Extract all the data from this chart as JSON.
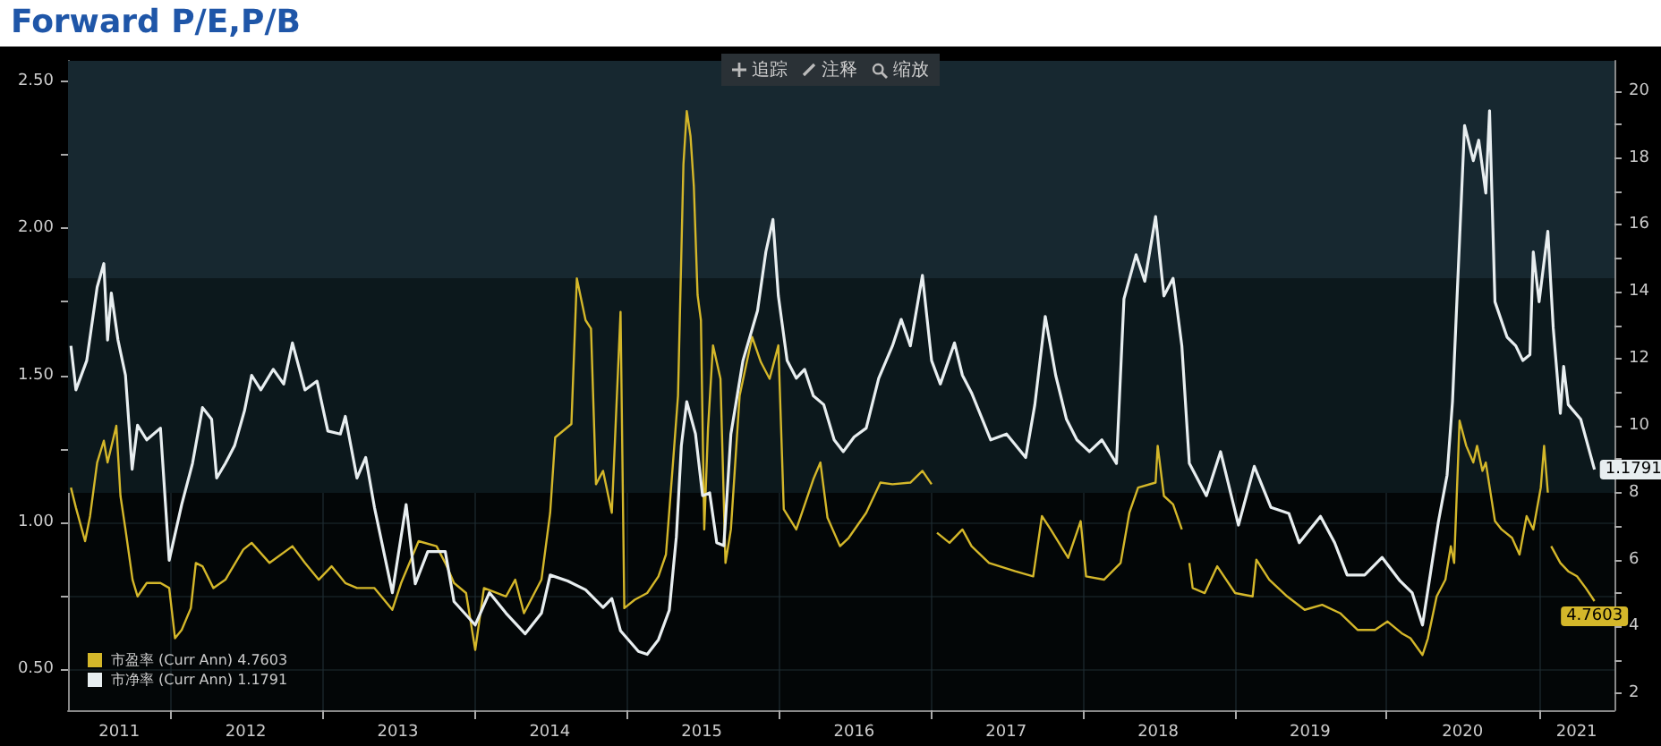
{
  "chart_data": {
    "type": "line",
    "title": "Forward P/E,P/B",
    "annotations": [
      "追踪",
      "注释",
      "缩放"
    ],
    "xlim": [
      "2011-05-01",
      "2021-07-01"
    ],
    "xticks": [
      {
        "value": "2011-09-01",
        "label": "2011"
      },
      {
        "value": "2012-01-01",
        "label": null
      },
      {
        "value": "2012-07-01",
        "label": "2012"
      },
      {
        "value": "2013-01-01",
        "label": null
      },
      {
        "value": "2013-07-01",
        "label": "2013"
      },
      {
        "value": "2014-01-01",
        "label": null
      },
      {
        "value": "2014-07-01",
        "label": "2014"
      },
      {
        "value": "2015-01-01",
        "label": null
      },
      {
        "value": "2015-07-01",
        "label": "2015"
      },
      {
        "value": "2016-01-01",
        "label": null
      },
      {
        "value": "2016-07-01",
        "label": "2016"
      },
      {
        "value": "2017-01-01",
        "label": null
      },
      {
        "value": "2017-07-01",
        "label": "2017"
      },
      {
        "value": "2018-01-01",
        "label": null
      },
      {
        "value": "2018-07-01",
        "label": "2018"
      },
      {
        "value": "2019-01-01",
        "label": null
      },
      {
        "value": "2019-07-01",
        "label": "2019"
      },
      {
        "value": "2020-01-01",
        "label": null
      },
      {
        "value": "2020-07-01",
        "label": "2020"
      },
      {
        "value": "2021-01-01",
        "label": null
      },
      {
        "value": "2021-04-01",
        "label": "2021"
      }
    ],
    "ylim": [
      0.36,
      2.57
    ],
    "yticks": [
      {
        "value": 0.5,
        "label": "0.50"
      },
      {
        "value": 0.75,
        "label": null
      },
      {
        "value": 1,
        "label": "1.00"
      },
      {
        "value": 1.25,
        "label": null
      },
      {
        "value": 1.5,
        "label": "1.50"
      },
      {
        "value": 1.75,
        "label": null
      },
      {
        "value": 2,
        "label": "2.00"
      },
      {
        "value": 2.25,
        "label": null
      },
      {
        "value": 2.5,
        "label": "2.50"
      }
    ],
    "y2lim": [
      1.5,
      20.9
    ],
    "y2ticks": [
      2,
      {
        "value": 3,
        "label": null
      },
      4,
      {
        "value": 5,
        "label": null
      },
      6,
      {
        "value": 7,
        "label": null
      },
      8,
      {
        "value": 9,
        "label": null
      },
      10,
      {
        "value": 11,
        "label": null
      },
      12,
      {
        "value": 13,
        "label": null
      },
      14,
      {
        "value": 15,
        "label": null
      },
      16,
      {
        "value": 17,
        "label": null
      },
      18,
      {
        "value": 19,
        "label": null
      },
      20
    ],
    "bands": [
      {
        "axis": "y",
        "from": 1.83,
        "to": 2.57,
        "color": "#172830"
      },
      {
        "axis": "y",
        "from": 1.1,
        "to": 1.83,
        "color": "#0c181c"
      }
    ],
    "grid": true,
    "legend": "bottom left",
    "series": [
      {
        "name": "市盈率 (Curr Ann) 4.7603",
        "color": "#d4b72a",
        "axis": "y2",
        "x": [
          "2011-05-08",
          "2011-05-20",
          "2011-06-11",
          "2011-06-23",
          "2011-07-10",
          "2011-07-26",
          "2011-08-04",
          "2011-08-25",
          "2011-09-04",
          "2011-09-16",
          "2011-10-03",
          "2011-10-15",
          "2011-11-06",
          "2011-12-09",
          "2011-12-30",
          "2012-01-13",
          "2012-01-29",
          "2012-02-20",
          "2012-03-03",
          "2012-03-19",
          "2012-04-14",
          "2012-05-13",
          "2012-06-25",
          "2012-07-15",
          "2012-08-27",
          "2012-10-21",
          "2012-11-20",
          "2012-12-23",
          "2013-01-23",
          "2013-02-25",
          "2013-03-25",
          "2013-05-06",
          "2013-06-18",
          "2013-07-09",
          "2013-08-20",
          "2013-10-02",
          "2013-10-23",
          "2013-11-13",
          "2013-12-12",
          "2014-01-03",
          "2014-01-24",
          "2014-03-18",
          "2014-04-09",
          "2014-04-30",
          "2014-06-11",
          "2014-07-02",
          "2014-07-14",
          "2014-08-22",
          "2014-09-04",
          "2014-09-25",
          "2014-10-08",
          "2014-10-20",
          "2014-11-06",
          "2014-11-27",
          "2014-12-18",
          "2014-12-27",
          "2015-01-21",
          "2015-02-20",
          "2015-03-19",
          "2015-04-06",
          "2015-04-23",
          "2015-05-05",
          "2015-05-18",
          "2015-05-26",
          "2015-06-04",
          "2015-06-12",
          "2015-06-21",
          "2015-06-29",
          "2015-07-07",
          "2015-07-16",
          "2015-07-28",
          "2015-08-15",
          "2015-08-27",
          "2015-09-09",
          "2015-09-30",
          "2015-10-30",
          "2015-11-20",
          "2015-12-11",
          "2016-01-01",
          "2016-01-14",
          "2016-02-13",
          "2016-03-25",
          "2016-04-11",
          "2016-04-28",
          "2016-05-28",
          "2016-06-18",
          "2016-07-30",
          "2016-09-02",
          "2016-10-01",
          "2016-11-13",
          "2016-12-12",
          "2017-01-03",
          "2017-01-10",
          "2017-01-16",
          "2017-02-15",
          "2017-03-18",
          "2017-04-09",
          "2017-05-21",
          "2017-07-23",
          "2017-09-04",
          "2017-09-25",
          "2017-10-16",
          "2017-11-27",
          "2017-12-27",
          "2018-01-09",
          "2018-02-21",
          "2018-04-02",
          "2018-04-23",
          "2018-05-14",
          "2018-06-25",
          "2018-06-30",
          "2018-07-15",
          "2018-08-06",
          "2018-08-27",
          "2018-09-05",
          "2018-09-14",
          "2018-09-22",
          "2018-10-21",
          "2018-11-20",
          "2019-01-02",
          "2019-02-13",
          "2019-02-22",
          "2019-03-25",
          "2019-05-07",
          "2019-06-18",
          "2019-07-30",
          "2019-09-11",
          "2019-10-23",
          "2019-12-04",
          "2020-01-03",
          "2020-02-06",
          "2020-02-27",
          "2020-03-27",
          "2020-04-09",
          "2020-04-30",
          "2020-05-21",
          "2020-06-03",
          "2020-06-11",
          "2020-06-24",
          "2020-07-10",
          "2020-07-27",
          "2020-08-05",
          "2020-08-18",
          "2020-08-26",
          "2020-09-17",
          "2020-10-03",
          "2020-10-28",
          "2020-11-15",
          "2020-12-02",
          "2020-12-18",
          "2021-01-05",
          "2021-01-13",
          "2021-01-22",
          "2021-01-27",
          "2021-01-30",
          "2021-02-21",
          "2021-03-12",
          "2021-04-02",
          "2021-04-23",
          "2021-05-14"
        ],
        "values": [
          8.15,
          7.55,
          6.55,
          7.3,
          8.9,
          9.55,
          8.9,
          10.0,
          7.9,
          6.9,
          5.4,
          4.9,
          5.3,
          5.3,
          5.15,
          3.65,
          3.9,
          4.55,
          5.9,
          5.8,
          5.15,
          5.4,
          6.3,
          6.5,
          5.9,
          6.4,
          5.9,
          5.4,
          5.8,
          5.3,
          5.15,
          5.15,
          4.5,
          5.3,
          6.55,
          6.4,
          5.9,
          5.3,
          5.0,
          3.3,
          5.15,
          4.9,
          5.4,
          4.4,
          5.4,
          7.4,
          9.65,
          10.05,
          14.4,
          13.15,
          12.9,
          8.25,
          8.65,
          7.4,
          13.4,
          4.55,
          4.8,
          5.0,
          5.5,
          6.15,
          8.9,
          10.9,
          17.8,
          19.4,
          18.65,
          17.15,
          13.9,
          13.15,
          6.9,
          9.9,
          12.4,
          11.4,
          5.9,
          6.9,
          10.9,
          12.65,
          11.9,
          11.4,
          12.4,
          7.5,
          6.9,
          8.4,
          8.9,
          7.25,
          6.4,
          6.65,
          7.4,
          8.3,
          8.25,
          8.3,
          8.65,
          8.25,
          null,
          6.8,
          6.5,
          6.9,
          6.4,
          5.9,
          5.65,
          5.5,
          7.3,
          6.9,
          6.05,
          7.15,
          5.5,
          5.4,
          5.9,
          7.4,
          8.15,
          8.3,
          9.4,
          7.9,
          7.65,
          6.9,
          null,
          5.9,
          5.15,
          5.0,
          5.8,
          5.0,
          4.9,
          6.0,
          5.4,
          4.9,
          4.5,
          4.65,
          4.4,
          3.9,
          3.9,
          4.15,
          3.8,
          3.65,
          3.15,
          3.65,
          4.9,
          5.4,
          6.4,
          5.9,
          10.15,
          9.4,
          8.9,
          9.4,
          8.65,
          8.9,
          7.15,
          6.9,
          6.65,
          6.15,
          7.3,
          6.9,
          8.15,
          9.4,
          8.0,
          null,
          6.4,
          5.9,
          5.65,
          5.5,
          5.15,
          4.7603
        ],
        "value_labels": [
          null,
          null,
          null,
          null,
          null,
          null,
          null,
          null,
          null,
          null,
          null,
          null,
          null,
          null,
          null,
          null,
          null,
          null,
          null,
          null,
          null,
          null,
          null,
          null,
          null,
          null,
          null,
          null,
          null,
          null,
          null,
          null,
          null,
          null,
          null,
          null,
          null,
          null,
          null,
          null,
          null,
          null,
          null,
          null,
          null,
          null,
          null,
          null,
          null,
          null,
          null,
          null,
          null,
          null,
          null,
          null,
          null,
          null,
          null,
          null,
          null,
          null,
          null,
          null,
          null,
          null,
          null,
          null,
          null,
          null,
          null,
          null,
          null,
          null,
          null,
          null,
          null,
          null,
          null,
          null,
          null,
          null,
          null,
          null,
          null,
          null,
          null,
          null,
          null,
          null,
          null,
          null,
          null,
          null,
          null,
          null,
          null,
          null,
          null,
          null,
          null,
          null,
          null,
          null,
          null,
          null,
          null,
          null,
          null,
          null,
          null,
          null,
          null,
          null,
          null,
          null,
          null,
          null,
          null,
          null,
          null,
          null,
          null,
          null,
          null,
          null,
          null,
          null,
          null,
          null,
          null,
          null,
          null,
          null,
          null,
          null,
          null,
          null,
          null,
          null,
          null,
          null,
          null,
          null,
          null,
          null,
          null,
          null,
          null,
          null,
          null,
          null,
          null,
          null,
          null,
          null,
          null,
          null,
          null,
          "4.7603"
        ]
      },
      {
        "name": "市净率 (Curr Ann) 1.1791",
        "color": "#e8eef0",
        "axis": "y",
        "x": [
          "2011-05-08",
          "2011-05-20",
          "2011-06-15",
          "2011-07-10",
          "2011-07-26",
          "2011-08-04",
          "2011-08-13",
          "2011-08-29",
          "2011-09-16",
          "2011-10-02",
          "2011-10-15",
          "2011-11-06",
          "2011-12-09",
          "2011-12-30",
          "2012-01-29",
          "2012-02-24",
          "2012-03-19",
          "2012-04-10",
          "2012-04-22",
          "2012-05-13",
          "2012-06-04",
          "2012-06-28",
          "2012-07-15",
          "2012-08-06",
          "2012-09-05",
          "2012-09-30",
          "2012-10-21",
          "2012-11-20",
          "2012-12-19",
          "2013-01-14",
          "2013-02-13",
          "2013-02-25",
          "2013-03-25",
          "2013-04-15",
          "2013-05-06",
          "2013-06-18",
          "2013-07-21",
          "2013-08-12",
          "2013-09-11",
          "2013-10-23",
          "2013-11-13",
          "2014-01-03",
          "2014-02-06",
          "2014-03-18",
          "2014-05-03",
          "2014-06-11",
          "2014-07-02",
          "2014-08-13",
          "2014-09-25",
          "2014-11-06",
          "2014-11-27",
          "2014-12-18",
          "2015-01-30",
          "2015-02-20",
          "2015-03-19",
          "2015-04-14",
          "2015-05-01",
          "2015-05-13",
          "2015-05-26",
          "2015-06-16",
          "2015-07-03",
          "2015-07-20",
          "2015-08-06",
          "2015-08-23",
          "2015-09-09",
          "2015-10-08",
          "2015-11-12",
          "2015-12-02",
          "2015-12-19",
          "2016-01-01",
          "2016-01-22",
          "2016-02-13",
          "2016-03-04",
          "2016-03-25",
          "2016-04-19",
          "2016-05-14",
          "2016-06-05",
          "2016-07-01",
          "2016-07-30",
          "2016-08-29",
          "2016-10-01",
          "2016-10-22",
          "2016-11-13",
          "2016-12-12",
          "2017-01-03",
          "2017-01-24",
          "2017-02-27",
          "2017-03-18",
          "2017-04-09",
          "2017-05-25",
          "2017-07-02",
          "2017-08-17",
          "2017-09-08",
          "2017-10-03",
          "2017-10-28",
          "2017-11-23",
          "2017-12-18",
          "2018-01-17",
          "2018-02-16",
          "2018-03-23",
          "2018-04-10",
          "2018-05-09",
          "2018-05-30",
          "2018-06-25",
          "2018-07-15",
          "2018-08-06",
          "2018-08-27",
          "2018-09-14",
          "2018-10-25",
          "2018-11-28",
          "2019-01-10",
          "2019-02-17",
          "2019-03-29",
          "2019-05-11",
          "2019-06-05",
          "2019-07-26",
          "2019-08-29",
          "2019-09-28",
          "2019-11-09",
          "2019-12-21",
          "2020-02-02",
          "2020-03-02",
          "2020-03-27",
          "2020-05-04",
          "2020-05-25",
          "2020-06-07",
          "2020-07-06",
          "2020-07-27",
          "2020-08-09",
          "2020-08-26",
          "2020-09-04",
          "2020-09-17",
          "2020-10-16",
          "2020-11-06",
          "2020-11-23",
          "2020-12-10",
          "2020-12-18",
          "2021-01-01",
          "2021-01-22",
          "2021-02-04",
          "2021-02-21",
          "2021-03-01",
          "2021-03-12",
          "2021-04-11",
          "2021-05-14"
        ],
        "values": [
          1.6,
          1.45,
          1.55,
          1.8,
          1.88,
          1.62,
          1.78,
          1.62,
          1.5,
          1.18,
          1.33,
          1.28,
          1.32,
          0.87,
          1.06,
          1.2,
          1.39,
          1.35,
          1.15,
          1.2,
          1.26,
          1.38,
          1.5,
          1.45,
          1.52,
          1.47,
          1.61,
          1.45,
          1.48,
          1.31,
          1.3,
          1.36,
          1.15,
          1.22,
          1.05,
          0.76,
          1.06,
          0.79,
          0.9,
          0.9,
          0.73,
          0.65,
          0.76,
          0.69,
          0.62,
          0.69,
          0.82,
          0.8,
          0.77,
          0.71,
          0.74,
          0.63,
          0.56,
          0.55,
          0.6,
          0.7,
          0.95,
          1.26,
          1.41,
          1.3,
          1.09,
          1.1,
          0.93,
          0.92,
          1.3,
          1.55,
          1.72,
          1.92,
          2.03,
          1.77,
          1.55,
          1.49,
          1.52,
          1.43,
          1.4,
          1.28,
          1.24,
          1.29,
          1.32,
          1.49,
          1.6,
          1.69,
          1.6,
          1.84,
          1.55,
          1.47,
          1.61,
          1.5,
          1.44,
          1.28,
          1.3,
          1.22,
          1.4,
          1.7,
          1.5,
          1.35,
          1.28,
          1.24,
          1.28,
          1.2,
          1.76,
          1.91,
          1.82,
          2.04,
          1.77,
          1.83,
          1.6,
          1.2,
          1.09,
          1.24,
          0.99,
          1.19,
          1.05,
          1.03,
          0.93,
          1.02,
          0.93,
          0.82,
          0.82,
          0.88,
          0.8,
          0.76,
          0.65,
          1.0,
          1.16,
          1.41,
          2.35,
          2.23,
          2.3,
          2.12,
          2.4,
          1.75,
          1.63,
          1.6,
          1.55,
          1.57,
          1.92,
          1.75,
          1.99,
          1.66,
          1.37,
          1.53,
          1.4,
          1.35,
          1.1791
        ],
        "value_labels": [
          null,
          null,
          null,
          null,
          null,
          null,
          null,
          null,
          null,
          null,
          null,
          null,
          null,
          null,
          null,
          null,
          null,
          null,
          null,
          null,
          null,
          null,
          null,
          null,
          null,
          null,
          null,
          null,
          null,
          null,
          null,
          null,
          null,
          null,
          null,
          null,
          null,
          null,
          null,
          null,
          null,
          null,
          null,
          null,
          null,
          null,
          null,
          null,
          null,
          null,
          null,
          null,
          null,
          null,
          null,
          null,
          null,
          null,
          null,
          null,
          null,
          null,
          null,
          null,
          null,
          null,
          null,
          null,
          null,
          null,
          null,
          null,
          null,
          null,
          null,
          null,
          null,
          null,
          null,
          null,
          null,
          null,
          null,
          null,
          null,
          null,
          null,
          null,
          null,
          null,
          null,
          null,
          null,
          null,
          null,
          null,
          null,
          null,
          null,
          null,
          null,
          null,
          null,
          null,
          null,
          null,
          null,
          null,
          null,
          null,
          null,
          null,
          null,
          null,
          null,
          null,
          null,
          null,
          null,
          null,
          null,
          null,
          null,
          null,
          null,
          null,
          null,
          null,
          null,
          null,
          null,
          null,
          null,
          null,
          null,
          null,
          null,
          null,
          null,
          null,
          null,
          null,
          null,
          null,
          "1.1791"
        ]
      }
    ]
  }
}
